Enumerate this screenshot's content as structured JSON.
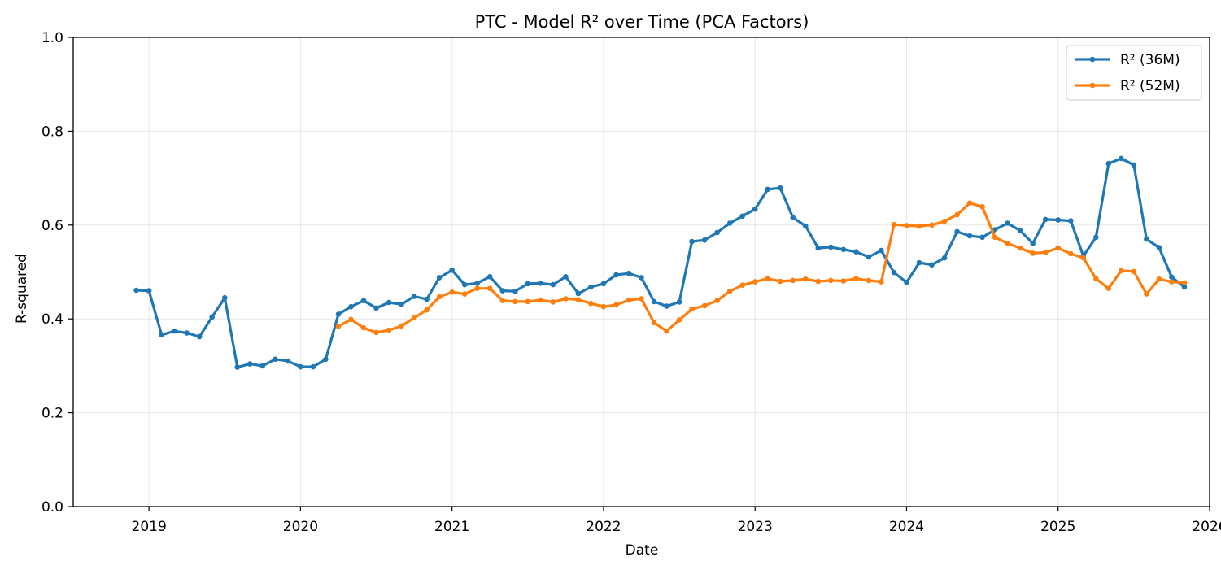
{
  "chart_data": {
    "type": "line",
    "title": "PTC - Model R² over Time (PCA Factors)",
    "xlabel": "Date",
    "ylabel": "R-squared",
    "x_ticks": [
      "2019",
      "2020",
      "2021",
      "2022",
      "2023",
      "2024",
      "2025",
      "2026"
    ],
    "y_ticks": [
      "0.0",
      "0.2",
      "0.4",
      "0.6",
      "0.8",
      "1.0"
    ],
    "xlim": [
      "2018-07",
      "2026-01"
    ],
    "ylim": [
      0,
      1.0
    ],
    "grid": true,
    "legend_position": "top-right",
    "series": [
      {
        "name": "R² (36M)",
        "color": "#1f77b4",
        "x": [
          "2018-12",
          "2019-01",
          "2019-02",
          "2019-03",
          "2019-04",
          "2019-05",
          "2019-06",
          "2019-07",
          "2019-08",
          "2019-09",
          "2019-10",
          "2019-11",
          "2019-12",
          "2020-01",
          "2020-02",
          "2020-03",
          "2020-04",
          "2020-05",
          "2020-06",
          "2020-07",
          "2020-08",
          "2020-09",
          "2020-10",
          "2020-11",
          "2020-12",
          "2021-01",
          "2021-02",
          "2021-03",
          "2021-04",
          "2021-05",
          "2021-06",
          "2021-07",
          "2021-08",
          "2021-09",
          "2021-10",
          "2021-11",
          "2021-12",
          "2022-01",
          "2022-02",
          "2022-03",
          "2022-04",
          "2022-05",
          "2022-06",
          "2022-07",
          "2022-08",
          "2022-09",
          "2022-10",
          "2022-11",
          "2022-12",
          "2023-01",
          "2023-02",
          "2023-03",
          "2023-04",
          "2023-05",
          "2023-06",
          "2023-07",
          "2023-08",
          "2023-09",
          "2023-10",
          "2023-11",
          "2023-12",
          "2024-01",
          "2024-02",
          "2024-03",
          "2024-04",
          "2024-05",
          "2024-06",
          "2024-07",
          "2024-08",
          "2024-09",
          "2024-10",
          "2024-11",
          "2024-12",
          "2025-01",
          "2025-02",
          "2025-03",
          "2025-04",
          "2025-05",
          "2025-06",
          "2025-07",
          "2025-08",
          "2025-09",
          "2025-10",
          "2025-11"
        ],
        "values": [
          0.461,
          0.46,
          0.366,
          0.374,
          0.37,
          0.362,
          0.404,
          0.445,
          0.297,
          0.304,
          0.3,
          0.314,
          0.31,
          0.298,
          0.298,
          0.314,
          0.41,
          0.426,
          0.439,
          0.423,
          0.435,
          0.431,
          0.448,
          0.442,
          0.488,
          0.504,
          0.473,
          0.476,
          0.49,
          0.46,
          0.459,
          0.475,
          0.476,
          0.473,
          0.49,
          0.454,
          0.468,
          0.475,
          0.494,
          0.497,
          0.488,
          0.437,
          0.427,
          0.436,
          0.565,
          0.568,
          0.584,
          0.604,
          0.619,
          0.634,
          0.676,
          0.679,
          0.616,
          0.598,
          0.551,
          0.553,
          0.548,
          0.543,
          0.532,
          0.546,
          0.499,
          0.478,
          0.52,
          0.515,
          0.53,
          0.586,
          0.577,
          0.574,
          0.59,
          0.604,
          0.588,
          0.561,
          0.612,
          0.611,
          0.609,
          0.534,
          0.574,
          0.731,
          0.742,
          0.728,
          0.57,
          0.552,
          0.489,
          0.468
        ]
      },
      {
        "name": "R² (52M)",
        "color": "#ff7f0e",
        "x": [
          "2020-04",
          "2020-05",
          "2020-06",
          "2020-07",
          "2020-08",
          "2020-09",
          "2020-10",
          "2020-11",
          "2020-12",
          "2021-01",
          "2021-02",
          "2021-03",
          "2021-04",
          "2021-05",
          "2021-06",
          "2021-07",
          "2021-08",
          "2021-09",
          "2021-10",
          "2021-11",
          "2021-12",
          "2022-01",
          "2022-02",
          "2022-03",
          "2022-04",
          "2022-05",
          "2022-06",
          "2022-07",
          "2022-08",
          "2022-09",
          "2022-10",
          "2022-11",
          "2022-12",
          "2023-01",
          "2023-02",
          "2023-03",
          "2023-04",
          "2023-05",
          "2023-06",
          "2023-07",
          "2023-08",
          "2023-09",
          "2023-10",
          "2023-11",
          "2023-12",
          "2024-01",
          "2024-02",
          "2024-03",
          "2024-04",
          "2024-05",
          "2024-06",
          "2024-07",
          "2024-08",
          "2024-09",
          "2024-10",
          "2024-11",
          "2024-12",
          "2025-01",
          "2025-02",
          "2025-03",
          "2025-04",
          "2025-05",
          "2025-06",
          "2025-07",
          "2025-08",
          "2025-09",
          "2025-10",
          "2025-11"
        ],
        "values": [
          0.384,
          0.399,
          0.381,
          0.371,
          0.376,
          0.385,
          0.402,
          0.419,
          0.447,
          0.457,
          0.453,
          0.465,
          0.465,
          0.439,
          0.437,
          0.437,
          0.44,
          0.436,
          0.443,
          0.441,
          0.433,
          0.426,
          0.43,
          0.44,
          0.443,
          0.392,
          0.374,
          0.398,
          0.421,
          0.428,
          0.439,
          0.459,
          0.472,
          0.479,
          0.486,
          0.48,
          0.482,
          0.485,
          0.48,
          0.482,
          0.481,
          0.486,
          0.482,
          0.479,
          0.601,
          0.599,
          0.598,
          0.6,
          0.608,
          0.622,
          0.647,
          0.639,
          0.574,
          0.561,
          0.551,
          0.54,
          0.542,
          0.551,
          0.539,
          0.53,
          0.486,
          0.465,
          0.503,
          0.501,
          0.453,
          0.485,
          0.479,
          0.477
        ]
      }
    ]
  }
}
